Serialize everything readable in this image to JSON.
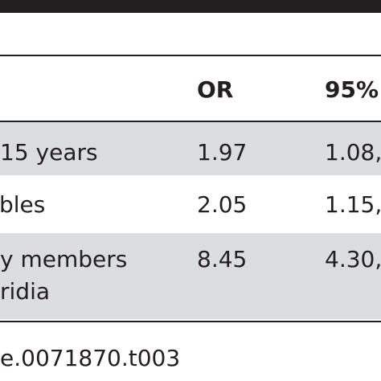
{
  "table": {
    "header": {
      "or": "OR",
      "ci": "95%"
    },
    "rows": [
      {
        "variable": "15 years",
        "or": "1.97",
        "ci": "1.08,"
      },
      {
        "variable": "bles",
        "or": "2.05",
        "ci": "1.15,"
      },
      {
        "variable_line1": "y members",
        "variable_line2": "ridia",
        "or": "8.45",
        "ci": "4.30,"
      }
    ]
  },
  "footnote": "e.0071870.t003"
}
